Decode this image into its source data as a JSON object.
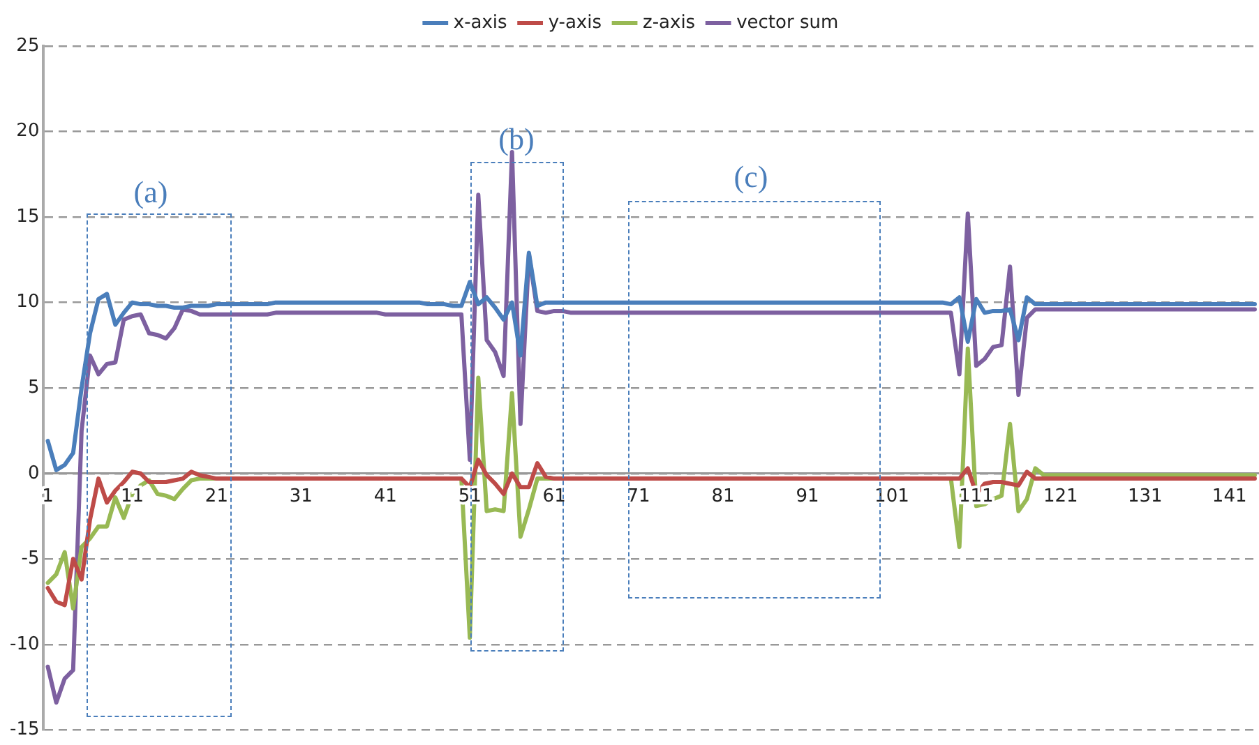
{
  "chart_data": {
    "type": "line",
    "legend": "top",
    "grid": "y",
    "marker": "none",
    "line_style": "solid",
    "x": [
      1,
      2,
      3,
      4,
      5,
      6,
      7,
      8,
      9,
      10,
      11,
      12,
      13,
      14,
      15,
      16,
      17,
      18,
      19,
      20,
      21,
      22,
      23,
      24,
      25,
      26,
      27,
      28,
      29,
      30,
      31,
      32,
      33,
      34,
      35,
      36,
      37,
      38,
      39,
      40,
      41,
      42,
      43,
      44,
      45,
      46,
      47,
      48,
      49,
      50,
      51,
      52,
      53,
      54,
      55,
      56,
      57,
      58,
      59,
      60,
      61,
      62,
      63,
      64,
      65,
      66,
      67,
      68,
      69,
      70,
      71,
      72,
      73,
      74,
      75,
      76,
      77,
      78,
      79,
      80,
      81,
      82,
      83,
      84,
      85,
      86,
      87,
      88,
      89,
      90,
      91,
      92,
      93,
      94,
      95,
      96,
      97,
      98,
      99,
      100,
      101,
      102,
      103,
      104,
      105,
      106,
      107,
      108,
      109,
      110,
      111,
      112,
      113,
      114,
      115,
      116,
      117,
      118,
      119,
      120,
      121,
      122,
      123,
      124,
      125,
      126,
      127,
      128,
      129,
      130,
      131,
      132,
      133,
      134,
      135,
      136,
      137,
      138,
      139,
      140,
      141,
      142,
      143,
      144
    ],
    "xlim": [
      0.5,
      144.5
    ],
    "xticks": [
      1,
      11,
      21,
      31,
      41,
      51,
      61,
      71,
      81,
      91,
      101,
      111,
      121,
      131,
      141
    ],
    "ylim": [
      -15,
      25
    ],
    "yticks": [
      -15,
      -10,
      -5,
      0,
      5,
      10,
      15,
      20,
      25
    ],
    "series": [
      {
        "name": "x-axis",
        "color": "#4a7ebb",
        "values": [
          1.9,
          0.2,
          0.5,
          1.2,
          5.0,
          8.2,
          10.2,
          10.5,
          8.7,
          9.4,
          10.0,
          9.9,
          9.9,
          9.8,
          9.8,
          9.7,
          9.7,
          9.8,
          9.8,
          9.8,
          9.9,
          9.9,
          9.9,
          9.9,
          9.9,
          9.9,
          9.9,
          10.0,
          10.0,
          10.0,
          10.0,
          10.0,
          10.0,
          10.0,
          10.0,
          10.0,
          10.0,
          10.0,
          10.0,
          10.0,
          10.0,
          10.0,
          10.0,
          10.0,
          10.0,
          9.9,
          9.9,
          9.9,
          9.8,
          9.8,
          11.2,
          9.9,
          10.3,
          9.7,
          9.0,
          10.0,
          6.9,
          12.9,
          9.8,
          10.0,
          10.0,
          10.0,
          10.0,
          10.0,
          10.0,
          10.0,
          10.0,
          10.0,
          10.0,
          10.0,
          10.0,
          10.0,
          10.0,
          10.0,
          10.0,
          10.0,
          10.0,
          10.0,
          10.0,
          10.0,
          10.0,
          10.0,
          10.0,
          10.0,
          10.0,
          10.0,
          10.0,
          10.0,
          10.0,
          10.0,
          10.0,
          10.0,
          10.0,
          10.0,
          10.0,
          10.0,
          10.0,
          10.0,
          10.0,
          10.0,
          10.0,
          10.0,
          10.0,
          10.0,
          10.0,
          10.0,
          10.0,
          9.9,
          10.3,
          7.7,
          10.2,
          9.4,
          9.5,
          9.5,
          9.6,
          7.8,
          10.3,
          9.9,
          9.9,
          9.9,
          9.9,
          9.9,
          9.9,
          9.9,
          9.9,
          9.9,
          9.9,
          9.9,
          9.9,
          9.9,
          9.9,
          9.9,
          9.9,
          9.9,
          9.9,
          9.9,
          9.9,
          9.9,
          9.9,
          9.9,
          9.9,
          9.9,
          9.9,
          9.9
        ]
      },
      {
        "name": "y-axis",
        "color": "#be4b48",
        "values": [
          -6.7,
          -7.5,
          -7.7,
          -5.0,
          -6.2,
          -2.7,
          -0.3,
          -1.7,
          -1.0,
          -0.5,
          0.1,
          0.0,
          -0.5,
          -0.5,
          -0.5,
          -0.4,
          -0.3,
          0.1,
          -0.1,
          -0.2,
          -0.3,
          -0.3,
          -0.3,
          -0.3,
          -0.3,
          -0.3,
          -0.3,
          -0.3,
          -0.3,
          -0.3,
          -0.3,
          -0.3,
          -0.3,
          -0.3,
          -0.3,
          -0.3,
          -0.3,
          -0.3,
          -0.3,
          -0.3,
          -0.3,
          -0.3,
          -0.3,
          -0.3,
          -0.3,
          -0.3,
          -0.3,
          -0.3,
          -0.3,
          -0.3,
          -0.8,
          0.8,
          -0.1,
          -0.6,
          -1.2,
          0.0,
          -0.8,
          -0.8,
          0.6,
          -0.2,
          -0.3,
          -0.3,
          -0.3,
          -0.3,
          -0.3,
          -0.3,
          -0.3,
          -0.3,
          -0.3,
          -0.3,
          -0.3,
          -0.3,
          -0.3,
          -0.3,
          -0.3,
          -0.3,
          -0.3,
          -0.3,
          -0.3,
          -0.3,
          -0.3,
          -0.3,
          -0.3,
          -0.3,
          -0.3,
          -0.3,
          -0.3,
          -0.3,
          -0.3,
          -0.3,
          -0.3,
          -0.3,
          -0.3,
          -0.3,
          -0.3,
          -0.3,
          -0.3,
          -0.3,
          -0.3,
          -0.3,
          -0.3,
          -0.3,
          -0.3,
          -0.3,
          -0.3,
          -0.3,
          -0.3,
          -0.3,
          -0.3,
          0.3,
          -1.2,
          -0.6,
          -0.5,
          -0.5,
          -0.6,
          -0.7,
          0.1,
          -0.3,
          -0.3,
          -0.3,
          -0.3,
          -0.3,
          -0.3,
          -0.3,
          -0.3,
          -0.3,
          -0.3,
          -0.3,
          -0.3,
          -0.3,
          -0.3,
          -0.3,
          -0.3,
          -0.3,
          -0.3,
          -0.3,
          -0.3,
          -0.3,
          -0.3,
          -0.3,
          -0.3,
          -0.3,
          -0.3,
          -0.3
        ]
      },
      {
        "name": "z-axis",
        "color": "#98b954",
        "values": [
          -6.4,
          -5.9,
          -4.6,
          -7.9,
          -4.3,
          -3.8,
          -3.1,
          -3.1,
          -1.4,
          -2.6,
          -1.2,
          -0.7,
          -0.4,
          -1.2,
          -1.3,
          -1.5,
          -0.9,
          -0.4,
          -0.3,
          -0.3,
          -0.3,
          -0.3,
          -0.3,
          -0.3,
          -0.3,
          -0.3,
          -0.3,
          -0.3,
          -0.3,
          -0.3,
          -0.3,
          -0.3,
          -0.3,
          -0.3,
          -0.3,
          -0.3,
          -0.3,
          -0.3,
          -0.3,
          -0.3,
          -0.3,
          -0.3,
          -0.3,
          -0.3,
          -0.3,
          -0.3,
          -0.3,
          -0.3,
          -0.3,
          -0.3,
          -9.6,
          5.6,
          -2.2,
          -2.1,
          -2.2,
          4.7,
          -3.7,
          -2.1,
          -0.3,
          -0.3,
          -0.3,
          -0.3,
          -0.3,
          -0.3,
          -0.3,
          -0.3,
          -0.3,
          -0.3,
          -0.3,
          -0.3,
          -0.3,
          -0.3,
          -0.3,
          -0.3,
          -0.3,
          -0.3,
          -0.3,
          -0.3,
          -0.3,
          -0.3,
          -0.3,
          -0.3,
          -0.3,
          -0.3,
          -0.3,
          -0.3,
          -0.3,
          -0.3,
          -0.3,
          -0.3,
          -0.3,
          -0.3,
          -0.3,
          -0.3,
          -0.3,
          -0.3,
          -0.3,
          -0.3,
          -0.3,
          -0.3,
          -0.3,
          -0.3,
          -0.3,
          -0.3,
          -0.3,
          -0.3,
          -0.3,
          -0.3,
          -4.3,
          7.3,
          -1.9,
          -1.8,
          -1.5,
          -1.3,
          2.9,
          -2.2,
          -1.5,
          0.3,
          -0.1,
          -0.1,
          -0.1,
          -0.1,
          -0.1,
          -0.1,
          -0.1,
          -0.1,
          -0.1,
          -0.1,
          -0.1,
          -0.1,
          -0.1,
          -0.1,
          -0.1,
          -0.1,
          -0.1,
          -0.1,
          -0.1,
          -0.1,
          -0.1,
          -0.1,
          -0.1,
          -0.1,
          -0.1,
          -0.1
        ]
      },
      {
        "name": "vector sum",
        "color": "#7d60a0",
        "values": [
          -11.3,
          -13.4,
          -12.0,
          -11.5,
          2.5,
          6.9,
          5.8,
          6.4,
          6.5,
          9.0,
          9.2,
          9.3,
          8.2,
          8.1,
          7.9,
          8.5,
          9.6,
          9.5,
          9.3,
          9.3,
          9.3,
          9.3,
          9.3,
          9.3,
          9.3,
          9.3,
          9.3,
          9.4,
          9.4,
          9.4,
          9.4,
          9.4,
          9.4,
          9.4,
          9.4,
          9.4,
          9.4,
          9.4,
          9.4,
          9.4,
          9.3,
          9.3,
          9.3,
          9.3,
          9.3,
          9.3,
          9.3,
          9.3,
          9.3,
          9.3,
          0.8,
          16.3,
          7.8,
          7.1,
          5.7,
          18.8,
          2.9,
          12.8,
          9.5,
          9.4,
          9.5,
          9.5,
          9.4,
          9.4,
          9.4,
          9.4,
          9.4,
          9.4,
          9.4,
          9.4,
          9.4,
          9.4,
          9.4,
          9.4,
          9.4,
          9.4,
          9.4,
          9.4,
          9.4,
          9.4,
          9.4,
          9.4,
          9.4,
          9.4,
          9.4,
          9.4,
          9.4,
          9.4,
          9.4,
          9.4,
          9.4,
          9.4,
          9.4,
          9.4,
          9.4,
          9.4,
          9.4,
          9.4,
          9.4,
          9.4,
          9.4,
          9.4,
          9.4,
          9.4,
          9.4,
          9.4,
          9.4,
          9.4,
          5.8,
          15.2,
          6.3,
          6.7,
          7.4,
          7.5,
          12.1,
          4.6,
          9.1,
          9.6,
          9.6,
          9.6,
          9.6,
          9.6,
          9.6,
          9.6,
          9.6,
          9.6,
          9.6,
          9.6,
          9.6,
          9.6,
          9.6,
          9.6,
          9.6,
          9.6,
          9.6,
          9.6,
          9.6,
          9.6,
          9.6,
          9.6,
          9.6,
          9.6,
          9.6,
          9.6
        ]
      }
    ],
    "annotations": [
      "(a)",
      "(b)",
      "(c)"
    ]
  }
}
